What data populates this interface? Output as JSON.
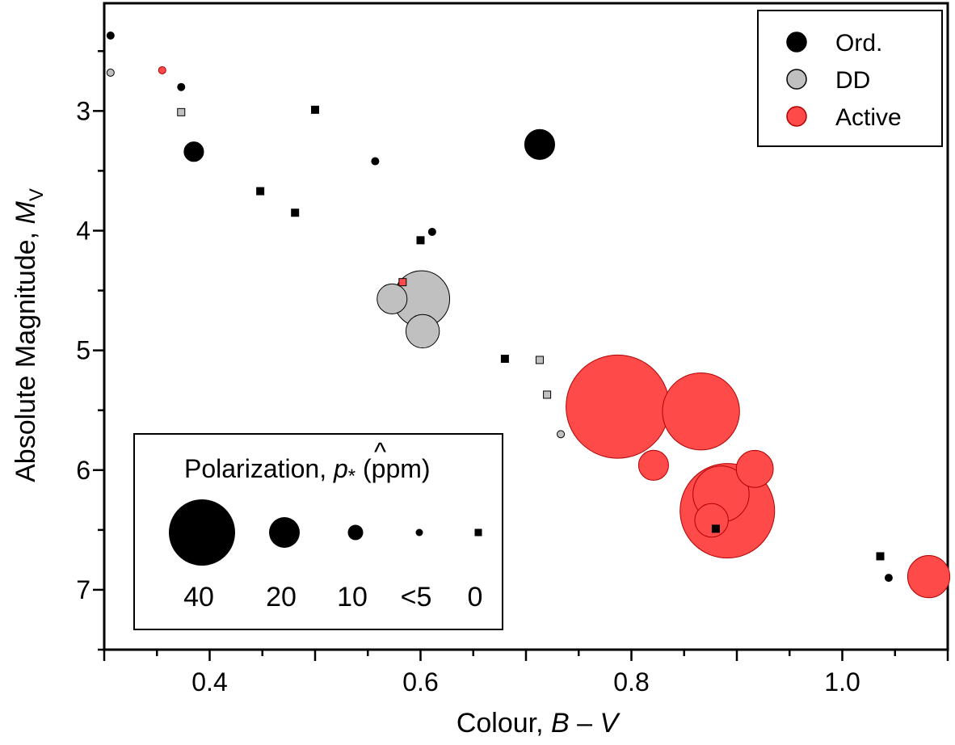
{
  "chart_data": {
    "type": "scatter",
    "xlabel": {
      "main": "Colour, ",
      "italic1": "B",
      "dash": " – ",
      "italic2": "V"
    },
    "ylabel": {
      "main": "Absolute Magnitude, ",
      "italic": "M",
      "sub": "V"
    },
    "xlim": [
      0.3,
      1.1
    ],
    "ylim": [
      7.5,
      2.1
    ],
    "y_inverted": true,
    "x_ticks": [
      "0.4",
      "0.6",
      "0.8",
      "1.0"
    ],
    "x_tick_values": [
      0.4,
      0.6,
      0.8,
      1.0
    ],
    "y_ticks": [
      "3",
      "4",
      "5",
      "6",
      "7"
    ],
    "y_tick_values": [
      3,
      4,
      5,
      6,
      7
    ],
    "legend": [
      {
        "label": "Ord.",
        "color": "#000000"
      },
      {
        "label": "DD",
        "color": "#c0c0c0"
      },
      {
        "label": "Active",
        "color": "#ff4a4a"
      }
    ],
    "size_legend": {
      "title": "Polarization, ",
      "symbol": "p",
      "subscript": "*",
      "unit": " (ppm)",
      "entries": [
        {
          "label": "40",
          "marker": "circle",
          "p": 40
        },
        {
          "label": "20",
          "marker": "circle",
          "p": 20
        },
        {
          "label": "10",
          "marker": "circle",
          "p": 10
        },
        {
          "label": "<5",
          "marker": "circle",
          "p": 3
        },
        {
          "label": "0",
          "marker": "square",
          "p": 0
        }
      ]
    },
    "points": [
      {
        "bv": 0.306,
        "mv": 2.37,
        "group": "Ord.",
        "p": 3,
        "marker": "circle"
      },
      {
        "bv": 0.306,
        "mv": 2.68,
        "group": "DD",
        "p": 3,
        "marker": "circle"
      },
      {
        "bv": 0.355,
        "mv": 2.66,
        "group": "Active",
        "p": 3,
        "marker": "circle"
      },
      {
        "bv": 0.373,
        "mv": 2.8,
        "group": "Ord.",
        "p": 3,
        "marker": "circle"
      },
      {
        "bv": 0.373,
        "mv": 3.01,
        "group": "DD",
        "p": 0,
        "marker": "square"
      },
      {
        "bv": 0.385,
        "mv": 3.34,
        "group": "Ord.",
        "p": 12,
        "marker": "circle"
      },
      {
        "bv": 0.448,
        "mv": 3.67,
        "group": "Ord.",
        "p": 0,
        "marker": "square"
      },
      {
        "bv": 0.481,
        "mv": 3.85,
        "group": "Ord.",
        "p": 0,
        "marker": "square"
      },
      {
        "bv": 0.5,
        "mv": 2.99,
        "group": "Ord.",
        "p": 0,
        "marker": "square"
      },
      {
        "bv": 0.557,
        "mv": 3.42,
        "group": "Ord.",
        "p": 4,
        "marker": "circle"
      },
      {
        "bv": 0.611,
        "mv": 4.01,
        "group": "Ord.",
        "p": 4,
        "marker": "circle"
      },
      {
        "bv": 0.6,
        "mv": 4.08,
        "group": "Ord.",
        "p": 0,
        "marker": "square"
      },
      {
        "bv": 0.583,
        "mv": 4.43,
        "group": "Active",
        "p": 0,
        "marker": "square"
      },
      {
        "bv": 0.573,
        "mv": 4.57,
        "group": "DD",
        "p": 18,
        "marker": "circle"
      },
      {
        "bv": 0.601,
        "mv": 4.57,
        "group": "DD",
        "p": 33,
        "marker": "circle"
      },
      {
        "bv": 0.602,
        "mv": 4.84,
        "group": "DD",
        "p": 20,
        "marker": "circle"
      },
      {
        "bv": 0.713,
        "mv": 3.28,
        "group": "Ord.",
        "p": 18,
        "marker": "circle"
      },
      {
        "bv": 0.68,
        "mv": 5.07,
        "group": "Ord.",
        "p": 0,
        "marker": "square"
      },
      {
        "bv": 0.713,
        "mv": 5.08,
        "group": "DD",
        "p": 0,
        "marker": "square"
      },
      {
        "bv": 0.72,
        "mv": 5.37,
        "group": "DD",
        "p": 0,
        "marker": "square"
      },
      {
        "bv": 0.733,
        "mv": 5.7,
        "group": "DD",
        "p": 3,
        "marker": "circle"
      },
      {
        "bv": 0.787,
        "mv": 5.47,
        "group": "Active",
        "p": 60,
        "marker": "circle"
      },
      {
        "bv": 0.866,
        "mv": 5.51,
        "group": "Active",
        "p": 45,
        "marker": "circle"
      },
      {
        "bv": 0.821,
        "mv": 5.96,
        "group": "Active",
        "p": 18,
        "marker": "circle"
      },
      {
        "bv": 0.917,
        "mv": 5.99,
        "group": "Active",
        "p": 22,
        "marker": "circle"
      },
      {
        "bv": 0.885,
        "mv": 6.2,
        "group": "Active",
        "p": 33,
        "marker": "circle"
      },
      {
        "bv": 0.891,
        "mv": 6.34,
        "group": "Active",
        "p": 55,
        "marker": "circle"
      },
      {
        "bv": 0.876,
        "mv": 6.42,
        "group": "Active",
        "p": 20,
        "marker": "circle"
      },
      {
        "bv": 0.88,
        "mv": 6.49,
        "group": "Ord.",
        "p": 0,
        "marker": "square"
      },
      {
        "bv": 1.036,
        "mv": 6.72,
        "group": "Ord.",
        "p": 0,
        "marker": "square"
      },
      {
        "bv": 1.044,
        "mv": 6.9,
        "group": "Ord.",
        "p": 3,
        "marker": "circle"
      },
      {
        "bv": 1.082,
        "mv": 6.89,
        "group": "Active",
        "p": 25,
        "marker": "circle"
      }
    ]
  }
}
